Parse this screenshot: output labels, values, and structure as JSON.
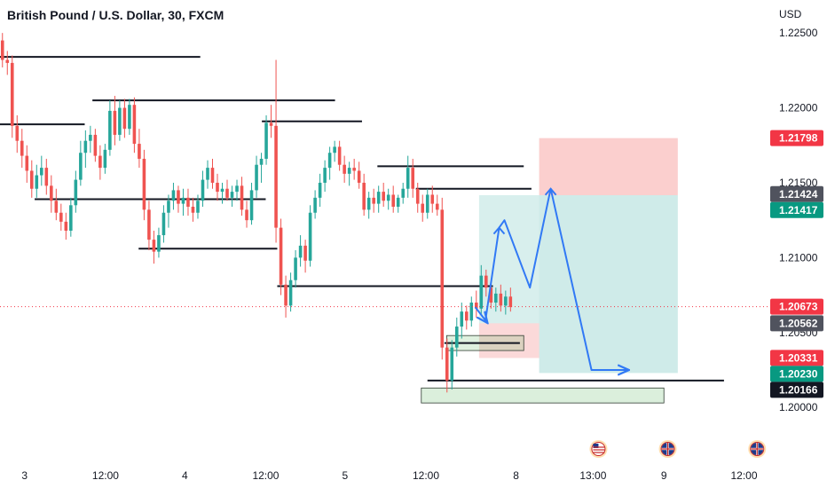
{
  "header": {
    "title": "British Pound / U.S. Dollar, 30, FXCM",
    "currency": "USD"
  },
  "colors": {
    "up": "#26a69a",
    "down": "#ef5350",
    "level_line": "#131722",
    "arrow": "#3179f5",
    "target_zone": "#26a69a",
    "stop_zone": "#ef5350",
    "demand_zone": "#4caf50",
    "badge_red": "#f23645",
    "badge_grey": "#50535e",
    "badge_green": "#089981",
    "badge_black": "#131722",
    "current_price_line": "#f23645"
  },
  "chart_data": {
    "type": "candlestick",
    "title": "British Pound / U.S. Dollar, 30, FXCM",
    "xlabel": "",
    "ylabel": "USD",
    "ylim": [
      1.1964,
      1.2272
    ],
    "y_ticks": [
      "1.22500",
      "1.22000",
      "1.21500",
      "1.21000",
      "1.20500",
      "1.20000"
    ],
    "x_ticks": [
      "3",
      "12:00",
      "4",
      "12:00",
      "5",
      "12:00",
      "8",
      "13:00",
      "9",
      "12:00"
    ],
    "grid": false,
    "candles_ohlc": [
      [
        1.2245,
        1.225,
        1.2227,
        1.2232
      ],
      [
        1.2232,
        1.2238,
        1.2222,
        1.223
      ],
      [
        1.223,
        1.2235,
        1.218,
        1.2188
      ],
      [
        1.2188,
        1.2195,
        1.217,
        1.2178
      ],
      [
        1.2178,
        1.2186,
        1.216,
        1.2168
      ],
      [
        1.2168,
        1.2175,
        1.215,
        1.2158
      ],
      [
        1.2158,
        1.2165,
        1.214,
        1.2146
      ],
      [
        1.2146,
        1.2162,
        1.214,
        1.2155
      ],
      [
        1.2155,
        1.2168,
        1.2148,
        1.216
      ],
      [
        1.216,
        1.2166,
        1.2142,
        1.2148
      ],
      [
        1.2148,
        1.2155,
        1.213,
        1.2138
      ],
      [
        1.2138,
        1.2146,
        1.2125,
        1.213
      ],
      [
        1.213,
        1.2136,
        1.2118,
        1.2124
      ],
      [
        1.2124,
        1.213,
        1.2112,
        1.2118
      ],
      [
        1.2118,
        1.214,
        1.2114,
        1.2135
      ],
      [
        1.2135,
        1.2158,
        1.213,
        1.2152
      ],
      [
        1.2152,
        1.2178,
        1.2148,
        1.217
      ],
      [
        1.217,
        1.2185,
        1.216,
        1.2178
      ],
      [
        1.2178,
        1.2188,
        1.217,
        1.2182
      ],
      [
        1.2182,
        1.2186,
        1.2164,
        1.2168
      ],
      [
        1.2168,
        1.2175,
        1.2152,
        1.216
      ],
      [
        1.216,
        1.2176,
        1.2156,
        1.2172
      ],
      [
        1.2172,
        1.2205,
        1.2168,
        1.2198
      ],
      [
        1.2198,
        1.2208,
        1.2175,
        1.2182
      ],
      [
        1.2182,
        1.2205,
        1.2178,
        1.22
      ],
      [
        1.22,
        1.2206,
        1.218,
        1.2186
      ],
      [
        1.2186,
        1.2206,
        1.2182,
        1.2202
      ],
      [
        1.2202,
        1.2207,
        1.217,
        1.2176
      ],
      [
        1.2176,
        1.2186,
        1.216,
        1.2166
      ],
      [
        1.2166,
        1.2172,
        1.2125,
        1.2132
      ],
      [
        1.2132,
        1.2138,
        1.2105,
        1.2112
      ],
      [
        1.2112,
        1.2118,
        1.2096,
        1.2104
      ],
      [
        1.2104,
        1.212,
        1.21,
        1.2115
      ],
      [
        1.2115,
        1.2135,
        1.211,
        1.213
      ],
      [
        1.213,
        1.2142,
        1.212,
        1.2138
      ],
      [
        1.2138,
        1.215,
        1.2132,
        1.2145
      ],
      [
        1.2145,
        1.2148,
        1.213,
        1.2136
      ],
      [
        1.2136,
        1.2146,
        1.2128,
        1.214
      ],
      [
        1.214,
        1.2146,
        1.2128,
        1.2134
      ],
      [
        1.2134,
        1.214,
        1.2124,
        1.213
      ],
      [
        1.213,
        1.2142,
        1.2126,
        1.2138
      ],
      [
        1.2138,
        1.2158,
        1.2134,
        1.2152
      ],
      [
        1.2152,
        1.2165,
        1.2146,
        1.216
      ],
      [
        1.216,
        1.2166,
        1.2146,
        1.215
      ],
      [
        1.215,
        1.2156,
        1.2138,
        1.2144
      ],
      [
        1.2144,
        1.215,
        1.2136,
        1.2146
      ],
      [
        1.2146,
        1.2152,
        1.2138,
        1.214
      ],
      [
        1.214,
        1.2148,
        1.2134,
        1.2144
      ],
      [
        1.2144,
        1.2152,
        1.2138,
        1.2148
      ],
      [
        1.2148,
        1.2154,
        1.2128,
        1.2132
      ],
      [
        1.2132,
        1.2138,
        1.212,
        1.2125
      ],
      [
        1.2125,
        1.215,
        1.2122,
        1.2145
      ],
      [
        1.2145,
        1.2168,
        1.214,
        1.2162
      ],
      [
        1.2162,
        1.217,
        1.215,
        1.2166
      ],
      [
        1.2166,
        1.2195,
        1.2162,
        1.219
      ],
      [
        1.219,
        1.2202,
        1.218,
        1.2188
      ],
      [
        1.2188,
        1.2232,
        1.211,
        1.212
      ],
      [
        1.212,
        1.2126,
        1.2075,
        1.2082
      ],
      [
        1.2082,
        1.2088,
        1.206,
        1.2068
      ],
      [
        1.2068,
        1.209,
        1.2064,
        1.2085
      ],
      [
        1.2085,
        1.2105,
        1.208,
        1.21
      ],
      [
        1.21,
        1.2115,
        1.2094,
        1.2108
      ],
      [
        1.2108,
        1.2112,
        1.209,
        1.2098
      ],
      [
        1.2098,
        1.2135,
        1.2094,
        1.213
      ],
      [
        1.213,
        1.2145,
        1.2126,
        1.214
      ],
      [
        1.214,
        1.2156,
        1.2134,
        1.215
      ],
      [
        1.215,
        1.2165,
        1.2144,
        1.216
      ],
      [
        1.216,
        1.2174,
        1.2152,
        1.217
      ],
      [
        1.217,
        1.2178,
        1.2164,
        1.2174
      ],
      [
        1.2174,
        1.2178,
        1.2158,
        1.2162
      ],
      [
        1.2162,
        1.2168,
        1.215,
        1.2156
      ],
      [
        1.2156,
        1.2164,
        1.2148,
        1.216
      ],
      [
        1.216,
        1.2166,
        1.2152,
        1.2158
      ],
      [
        1.2158,
        1.2164,
        1.2146,
        1.215
      ],
      [
        1.215,
        1.2156,
        1.2128,
        1.2132
      ],
      [
        1.2132,
        1.2144,
        1.2126,
        1.214
      ],
      [
        1.214,
        1.2146,
        1.213,
        1.2136
      ],
      [
        1.2136,
        1.2148,
        1.213,
        1.2144
      ],
      [
        1.2144,
        1.215,
        1.2134,
        1.2138
      ],
      [
        1.2138,
        1.2146,
        1.2132,
        1.2142
      ],
      [
        1.2142,
        1.2148,
        1.213,
        1.2134
      ],
      [
        1.2134,
        1.2142,
        1.213,
        1.214
      ],
      [
        1.214,
        1.215,
        1.2136,
        1.2146
      ],
      [
        1.2146,
        1.2168,
        1.214,
        1.216
      ],
      [
        1.216,
        1.2166,
        1.214,
        1.2146
      ],
      [
        1.2146,
        1.215,
        1.213,
        1.2136
      ],
      [
        1.2136,
        1.2142,
        1.2124,
        1.213
      ],
      [
        1.213,
        1.2146,
        1.2126,
        1.2142
      ],
      [
        1.2142,
        1.2148,
        1.213,
        1.2136
      ],
      [
        1.2136,
        1.2142,
        1.2128,
        1.2132
      ],
      [
        1.2132,
        1.214,
        1.2032,
        1.204
      ],
      [
        1.204,
        1.2046,
        1.201,
        1.2018
      ],
      [
        1.2018,
        1.2045,
        1.2012,
        1.204
      ],
      [
        1.204,
        1.206,
        1.2034,
        1.2054
      ],
      [
        1.2054,
        1.207,
        1.2046,
        1.2064
      ],
      [
        1.2064,
        1.2068,
        1.2052,
        1.2058
      ],
      [
        1.2058,
        1.2074,
        1.2054,
        1.207
      ],
      [
        1.207,
        1.2078,
        1.206,
        1.2066
      ],
      [
        1.2066,
        1.2095,
        1.2062,
        1.2088
      ],
      [
        1.2088,
        1.2092,
        1.2074,
        1.208
      ],
      [
        1.208,
        1.2084,
        1.2066,
        1.207
      ],
      [
        1.207,
        1.208,
        1.2064,
        1.2076
      ],
      [
        1.2076,
        1.2082,
        1.2064,
        1.2068
      ],
      [
        1.2068,
        1.2078,
        1.2062,
        1.2074
      ],
      [
        1.2074,
        1.208,
        1.2064,
        1.2067
      ]
    ],
    "horizontal_levels": [
      {
        "price": 1.2234,
        "from": 0,
        "to": 0.26
      },
      {
        "price": 1.2189,
        "from": 0,
        "to": 0.11
      },
      {
        "price": 1.2139,
        "from": 0.045,
        "to": 0.345
      },
      {
        "price": 1.2205,
        "from": 0.12,
        "to": 0.435
      },
      {
        "price": 1.2191,
        "from": 0.34,
        "to": 0.47
      },
      {
        "price": 1.2106,
        "from": 0.18,
        "to": 0.36
      },
      {
        "price": 1.2161,
        "from": 0.49,
        "to": 0.68
      },
      {
        "price": 1.2146,
        "from": 0.54,
        "to": 0.69
      },
      {
        "price": 1.2081,
        "from": 0.36,
        "to": 0.64
      },
      {
        "price": 1.2043,
        "from": 0.577,
        "to": 0.675
      },
      {
        "price": 1.2018,
        "from": 0.555,
        "to": 0.94
      }
    ],
    "zones": [
      {
        "name": "stop",
        "from": 0.7,
        "to": 0.88,
        "low": 1.21417,
        "high": 1.21798
      },
      {
        "name": "target",
        "from": 0.7,
        "to": 0.88,
        "low": 1.2023,
        "high": 1.21417
      },
      {
        "name": "stop-small",
        "from": 0.622,
        "to": 0.7,
        "low": 1.2033,
        "high": 1.20562
      },
      {
        "name": "target-small",
        "from": 0.622,
        "to": 0.7,
        "low": 1.20562,
        "high": 1.21417
      },
      {
        "name": "demand-small",
        "from": 0.58,
        "to": 0.68,
        "low": 1.2038,
        "high": 1.2048
      },
      {
        "name": "demand-large",
        "from": 0.547,
        "to": 0.862,
        "low": 1.2003,
        "high": 1.2013
      }
    ],
    "projection_path": [
      [
        0.63,
        1.2057
      ],
      [
        0.648,
        1.212
      ],
      [
        0.655,
        1.2125
      ],
      [
        0.688,
        1.208
      ],
      [
        0.715,
        1.2146
      ],
      [
        0.768,
        1.2025
      ],
      [
        0.815,
        1.2025
      ]
    ],
    "projection_path_short": [
      [
        0.617,
        1.2067
      ],
      [
        0.632,
        1.2057
      ]
    ],
    "current_price": 1.20673,
    "price_badges": [
      {
        "label": "1.21798",
        "value": 1.21798,
        "style": "red"
      },
      {
        "label": "1.21424",
        "value": 1.21424,
        "style": "grey"
      },
      {
        "label": "1.21417",
        "value": 1.21417,
        "style": "green"
      },
      {
        "label": "1.20673",
        "value": 1.20673,
        "style": "red"
      },
      {
        "label": "1.20562",
        "value": 1.20562,
        "style": "grey"
      },
      {
        "label": "1.20331",
        "value": 1.20331,
        "style": "red"
      },
      {
        "label": "1.20230",
        "value": 1.2023,
        "style": "green"
      },
      {
        "label": "1.20166",
        "value": 1.20166,
        "style": "black"
      }
    ],
    "event_icons": [
      {
        "name": "us-flag-icon",
        "pos": 0.777
      },
      {
        "name": "gb-flag-icon",
        "pos": 0.867
      },
      {
        "name": "gb-flag-icon",
        "pos": 0.983
      }
    ]
  }
}
